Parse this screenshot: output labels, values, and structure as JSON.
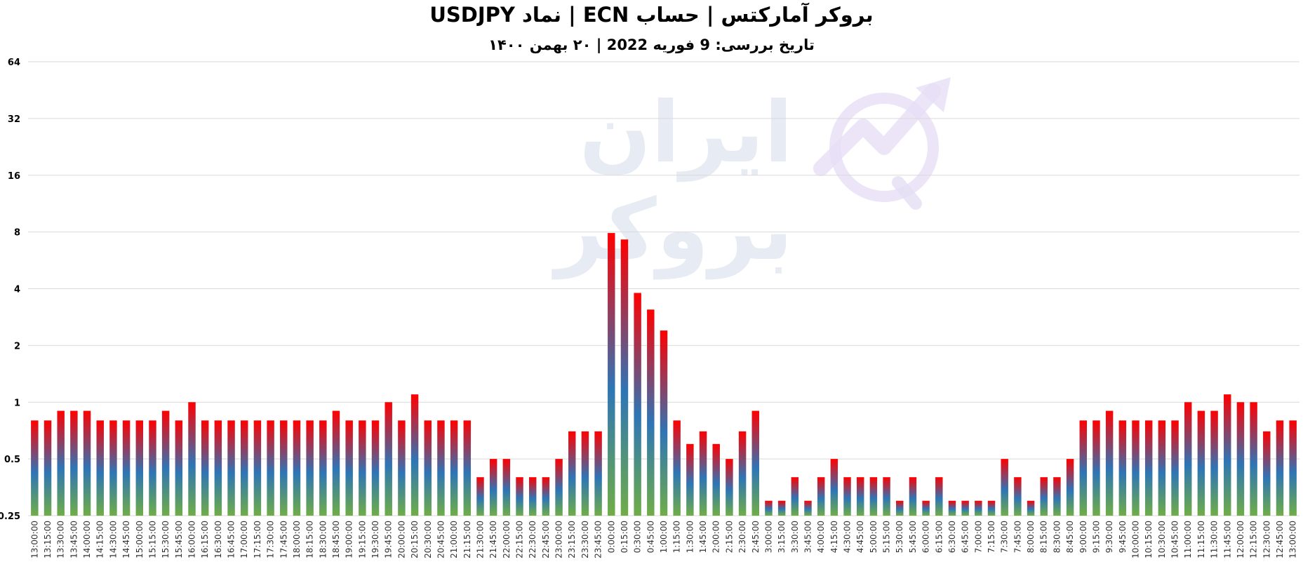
{
  "title": "بروکر آمارکتس | حساب ECN | نماد USDJPY",
  "subtitle": "تاریخ بررسی: 9 فوریه 2022 | ۲۰ بهمن ۱۴۰۰",
  "watermark_text": "ایران بروکر",
  "colors": {
    "top": "#ff0000",
    "middle": "#2e75b6",
    "bottom": "#70ad47",
    "grid": "#d9d9d9"
  },
  "chart_data": {
    "type": "bar",
    "yscale": "log2",
    "ylim": [
      0.25,
      64
    ],
    "yticks": [
      "0.25",
      "0.5",
      "1",
      "2",
      "4",
      "8",
      "16",
      "32",
      "64"
    ],
    "grid": true,
    "categories": [
      "13:00:00",
      "13:15:00",
      "13:30:00",
      "13:45:00",
      "14:00:00",
      "14:15:00",
      "14:30:00",
      "14:45:00",
      "15:00:00",
      "15:15:00",
      "15:30:00",
      "15:45:00",
      "16:00:00",
      "16:15:00",
      "16:30:00",
      "16:45:00",
      "17:00:00",
      "17:15:00",
      "17:30:00",
      "17:45:00",
      "18:00:00",
      "18:15:00",
      "18:30:00",
      "18:45:00",
      "19:00:00",
      "19:15:00",
      "19:30:00",
      "19:45:00",
      "20:00:00",
      "20:15:00",
      "20:30:00",
      "20:45:00",
      "21:00:00",
      "21:15:00",
      "21:30:00",
      "21:45:00",
      "22:00:00",
      "22:15:00",
      "22:30:00",
      "22:45:00",
      "23:00:00",
      "23:15:00",
      "23:30:00",
      "23:45:00",
      "0:00:00",
      "0:15:00",
      "0:30:00",
      "0:45:00",
      "1:00:00",
      "1:15:00",
      "1:30:00",
      "1:45:00",
      "2:00:00",
      "2:15:00",
      "2:30:00",
      "2:45:00",
      "3:00:00",
      "3:15:00",
      "3:30:00",
      "3:45:00",
      "4:00:00",
      "4:15:00",
      "4:30:00",
      "4:45:00",
      "5:00:00",
      "5:15:00",
      "5:30:00",
      "5:45:00",
      "6:00:00",
      "6:15:00",
      "6:30:00",
      "6:45:00",
      "7:00:00",
      "7:15:00",
      "7:30:00",
      "7:45:00",
      "8:00:00",
      "8:15:00",
      "8:30:00",
      "8:45:00",
      "9:00:00",
      "9:15:00",
      "9:30:00",
      "9:45:00",
      "10:00:00",
      "10:15:00",
      "10:30:00",
      "10:45:00",
      "11:00:00",
      "11:15:00",
      "11:30:00",
      "11:45:00",
      "12:00:00",
      "12:15:00",
      "12:30:00",
      "12:45:00",
      "13:00:00"
    ],
    "values": [
      0.8,
      0.8,
      0.9,
      0.9,
      0.9,
      0.8,
      0.8,
      0.8,
      0.8,
      0.8,
      0.9,
      0.8,
      1.0,
      0.8,
      0.8,
      0.8,
      0.8,
      0.8,
      0.8,
      0.8,
      0.8,
      0.8,
      0.8,
      0.9,
      0.8,
      0.8,
      0.8,
      1.0,
      0.8,
      1.1,
      0.8,
      0.8,
      0.8,
      0.8,
      0.4,
      0.5,
      0.5,
      0.4,
      0.4,
      0.4,
      0.5,
      0.7,
      0.7,
      0.7,
      7.9,
      7.3,
      3.8,
      3.1,
      2.4,
      0.8,
      0.6,
      0.7,
      0.6,
      0.5,
      0.7,
      0.9,
      0.3,
      0.3,
      0.4,
      0.3,
      0.4,
      0.5,
      0.4,
      0.4,
      0.4,
      0.4,
      0.3,
      0.4,
      0.3,
      0.4,
      0.3,
      0.3,
      0.3,
      0.3,
      0.5,
      0.4,
      0.3,
      0.4,
      0.4,
      0.5,
      0.8,
      0.8,
      0.9,
      0.8,
      0.8,
      0.8,
      0.8,
      0.8,
      1.0,
      0.9,
      0.9,
      1.1,
      1.0,
      1.0,
      0.7,
      0.8,
      0.8
    ]
  }
}
